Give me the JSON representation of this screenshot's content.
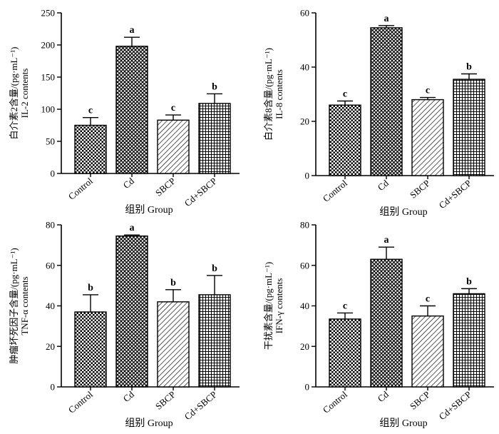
{
  "chart_data": [
    {
      "type": "bar",
      "id": "il2",
      "ylabel": "白介素2含量/(pg·mL⁻¹)",
      "ylabel_en": "IL-2 contents",
      "xlabel": "组别 Group",
      "categories": [
        "Control",
        "Cd",
        "SBCP",
        "Cd+SBCP"
      ],
      "values": [
        75,
        198,
        83,
        109
      ],
      "errors": [
        12,
        14,
        8,
        15
      ],
      "significance": [
        "c",
        "a",
        "c",
        "b"
      ],
      "patterns": [
        "checker",
        "crosshatch",
        "diagonal",
        "grid"
      ],
      "ylim": [
        0,
        250
      ],
      "yticks": [
        0,
        50,
        100,
        150,
        200,
        250
      ]
    },
    {
      "type": "bar",
      "id": "il8",
      "ylabel": "白介素8含量/(pg·mL⁻¹)",
      "ylabel_en": "IL-8 contents",
      "xlabel": "组别 Group",
      "categories": [
        "Control",
        "Cd",
        "SBCP",
        "Cd+SBCP"
      ],
      "values": [
        26,
        54.5,
        28,
        35.5
      ],
      "errors": [
        1.5,
        0.8,
        0.8,
        2
      ],
      "significance": [
        "c",
        "a",
        "c",
        "b"
      ],
      "patterns": [
        "checker",
        "crosshatch",
        "diagonal",
        "grid"
      ],
      "ylim": [
        0,
        60
      ],
      "yticks": [
        0,
        20,
        40,
        60
      ]
    },
    {
      "type": "bar",
      "id": "tnf",
      "ylabel": "肿瘤坏死因子含量/(pg·mL⁻¹)",
      "ylabel_en": "TNF-α contents",
      "xlabel": "组别 Group",
      "categories": [
        "Control",
        "Cd",
        "SBCP",
        "Cd+SBCP"
      ],
      "values": [
        37,
        74.5,
        42,
        45.5
      ],
      "errors": [
        8.5,
        0.5,
        6,
        9.5
      ],
      "significance": [
        "b",
        "a",
        "b",
        "b"
      ],
      "patterns": [
        "checker",
        "crosshatch",
        "diagonal",
        "grid"
      ],
      "ylim": [
        0,
        80
      ],
      "yticks": [
        0,
        20,
        40,
        60,
        80
      ]
    },
    {
      "type": "bar",
      "id": "ifn",
      "ylabel": "干扰素含量/(pg·mL⁻¹)",
      "ylabel_en": "IFN-γ contents",
      "xlabel": "组别 Group",
      "categories": [
        "Control",
        "Cd",
        "SBCP",
        "Cd+SBCP"
      ],
      "values": [
        33.5,
        63,
        35,
        46
      ],
      "errors": [
        3,
        6,
        5,
        2.5
      ],
      "significance": [
        "c",
        "a",
        "c",
        "b"
      ],
      "patterns": [
        "checker",
        "crosshatch",
        "diagonal",
        "grid"
      ],
      "ylim": [
        0,
        80
      ],
      "yticks": [
        0,
        20,
        40,
        60,
        80
      ]
    }
  ]
}
